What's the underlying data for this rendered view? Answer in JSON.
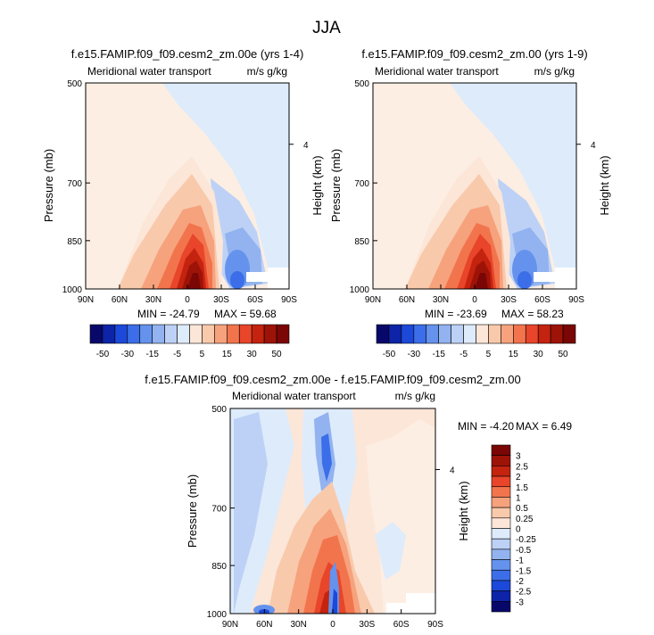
{
  "page_title": "JJA",
  "chart_data": [
    {
      "id": "p1",
      "type": "heatmap",
      "title": "f.e15.FAMIP.f09_f09.cesm2_zm.00e (yrs 1-4)",
      "left_string": "Meridional water transport",
      "right_string": "m/s g/kg",
      "ylabel": "Pressure (mb)",
      "ylabel_right": "Height (km)",
      "x_ticks": [
        "90N",
        "60N",
        "30N",
        "0",
        "30S",
        "60S",
        "90S"
      ],
      "x_range": [
        90,
        -90
      ],
      "y_ticks": [
        "500",
        "700",
        "850",
        "1000"
      ],
      "y_range": [
        500,
        1000
      ],
      "right_ticks": [
        "4"
      ],
      "min_label": "MIN = -24.79",
      "max_label": "MAX = 59.68",
      "min": -24.79,
      "max": 59.68,
      "colorbar_labels": [
        "-50",
        "-30",
        "-15",
        "-5",
        "5",
        "15",
        "30",
        "50"
      ]
    },
    {
      "id": "p2",
      "type": "heatmap",
      "title": "f.e15.FAMIP.f09_f09.cesm2_zm.00 (yrs 1-9)",
      "left_string": "Meridional water transport",
      "right_string": "m/s g/kg",
      "ylabel": "Pressure (mb)",
      "ylabel_right": "Height (km)",
      "x_ticks": [
        "90N",
        "60N",
        "30N",
        "0",
        "30S",
        "60S",
        "90S"
      ],
      "x_range": [
        90,
        -90
      ],
      "y_ticks": [
        "500",
        "700",
        "850",
        "1000"
      ],
      "y_range": [
        500,
        1000
      ],
      "right_ticks": [
        "4"
      ],
      "min_label": "MIN = -23.69",
      "max_label": "MAX = 58.23",
      "min": -23.69,
      "max": 58.23,
      "colorbar_labels": [
        "-50",
        "-30",
        "-15",
        "-5",
        "5",
        "15",
        "30",
        "50"
      ]
    },
    {
      "id": "p3",
      "type": "heatmap",
      "title": "f.e15.FAMIP.f09_f09.cesm2_zm.00e - f.e15.FAMIP.f09_f09.cesm2_zm.00",
      "left_string": "Meridional water transport",
      "right_string": "m/s g/kg",
      "ylabel": "Pressure (mb)",
      "ylabel_right": "Height (km)",
      "x_ticks": [
        "90N",
        "60N",
        "30N",
        "0",
        "30S",
        "60S",
        "90S"
      ],
      "x_range": [
        90,
        -90
      ],
      "y_ticks": [
        "500",
        "700",
        "850",
        "1000"
      ],
      "y_range": [
        500,
        1000
      ],
      "right_ticks": [
        "4"
      ],
      "min_label": "MIN =  -4.20",
      "max_label": "MAX =  6.49",
      "min": -4.2,
      "max": 6.49,
      "colorbar_labels": [
        "3",
        "2.5",
        "2",
        "1.5",
        "1",
        "0.5",
        "0.25",
        "0",
        "-0.25",
        "-0.5",
        "-1",
        "-1.5",
        "-2",
        "-2.5",
        "-3"
      ]
    }
  ],
  "colors": {
    "palette": [
      "#08086b",
      "#0d24a8",
      "#1c49d9",
      "#3b6ee8",
      "#6592ec",
      "#92b3f0",
      "#bcd1f5",
      "#deebfb",
      "#fce6d8",
      "#f9c9ac",
      "#f6a27d",
      "#f2744d",
      "#e8452a",
      "#c4230f",
      "#9e1307",
      "#7a0606"
    ]
  }
}
